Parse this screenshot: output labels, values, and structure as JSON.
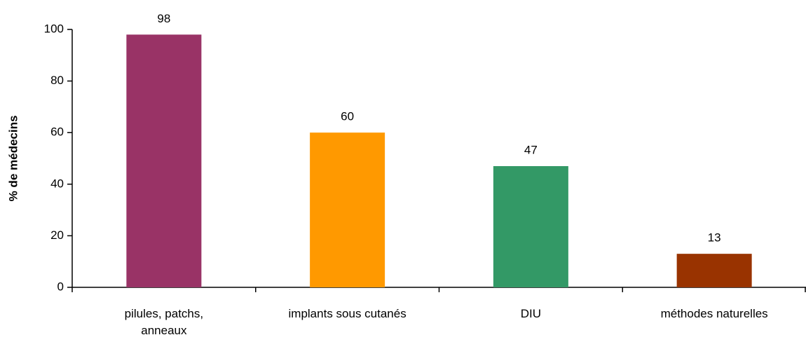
{
  "chart_data": {
    "type": "bar",
    "y_axis_label": "% de médecins",
    "categories": [
      "pilules, patchs, anneaux",
      "implants sous cutanés",
      "DIU",
      "méthodes naturelles"
    ],
    "values": [
      98,
      60,
      47,
      13
    ],
    "colors": [
      "#993366",
      "#ff9900",
      "#339966",
      "#993300"
    ],
    "ylim": [
      0,
      100
    ],
    "yticks": [
      0,
      20,
      40,
      60,
      80,
      100
    ],
    "grid": false
  }
}
